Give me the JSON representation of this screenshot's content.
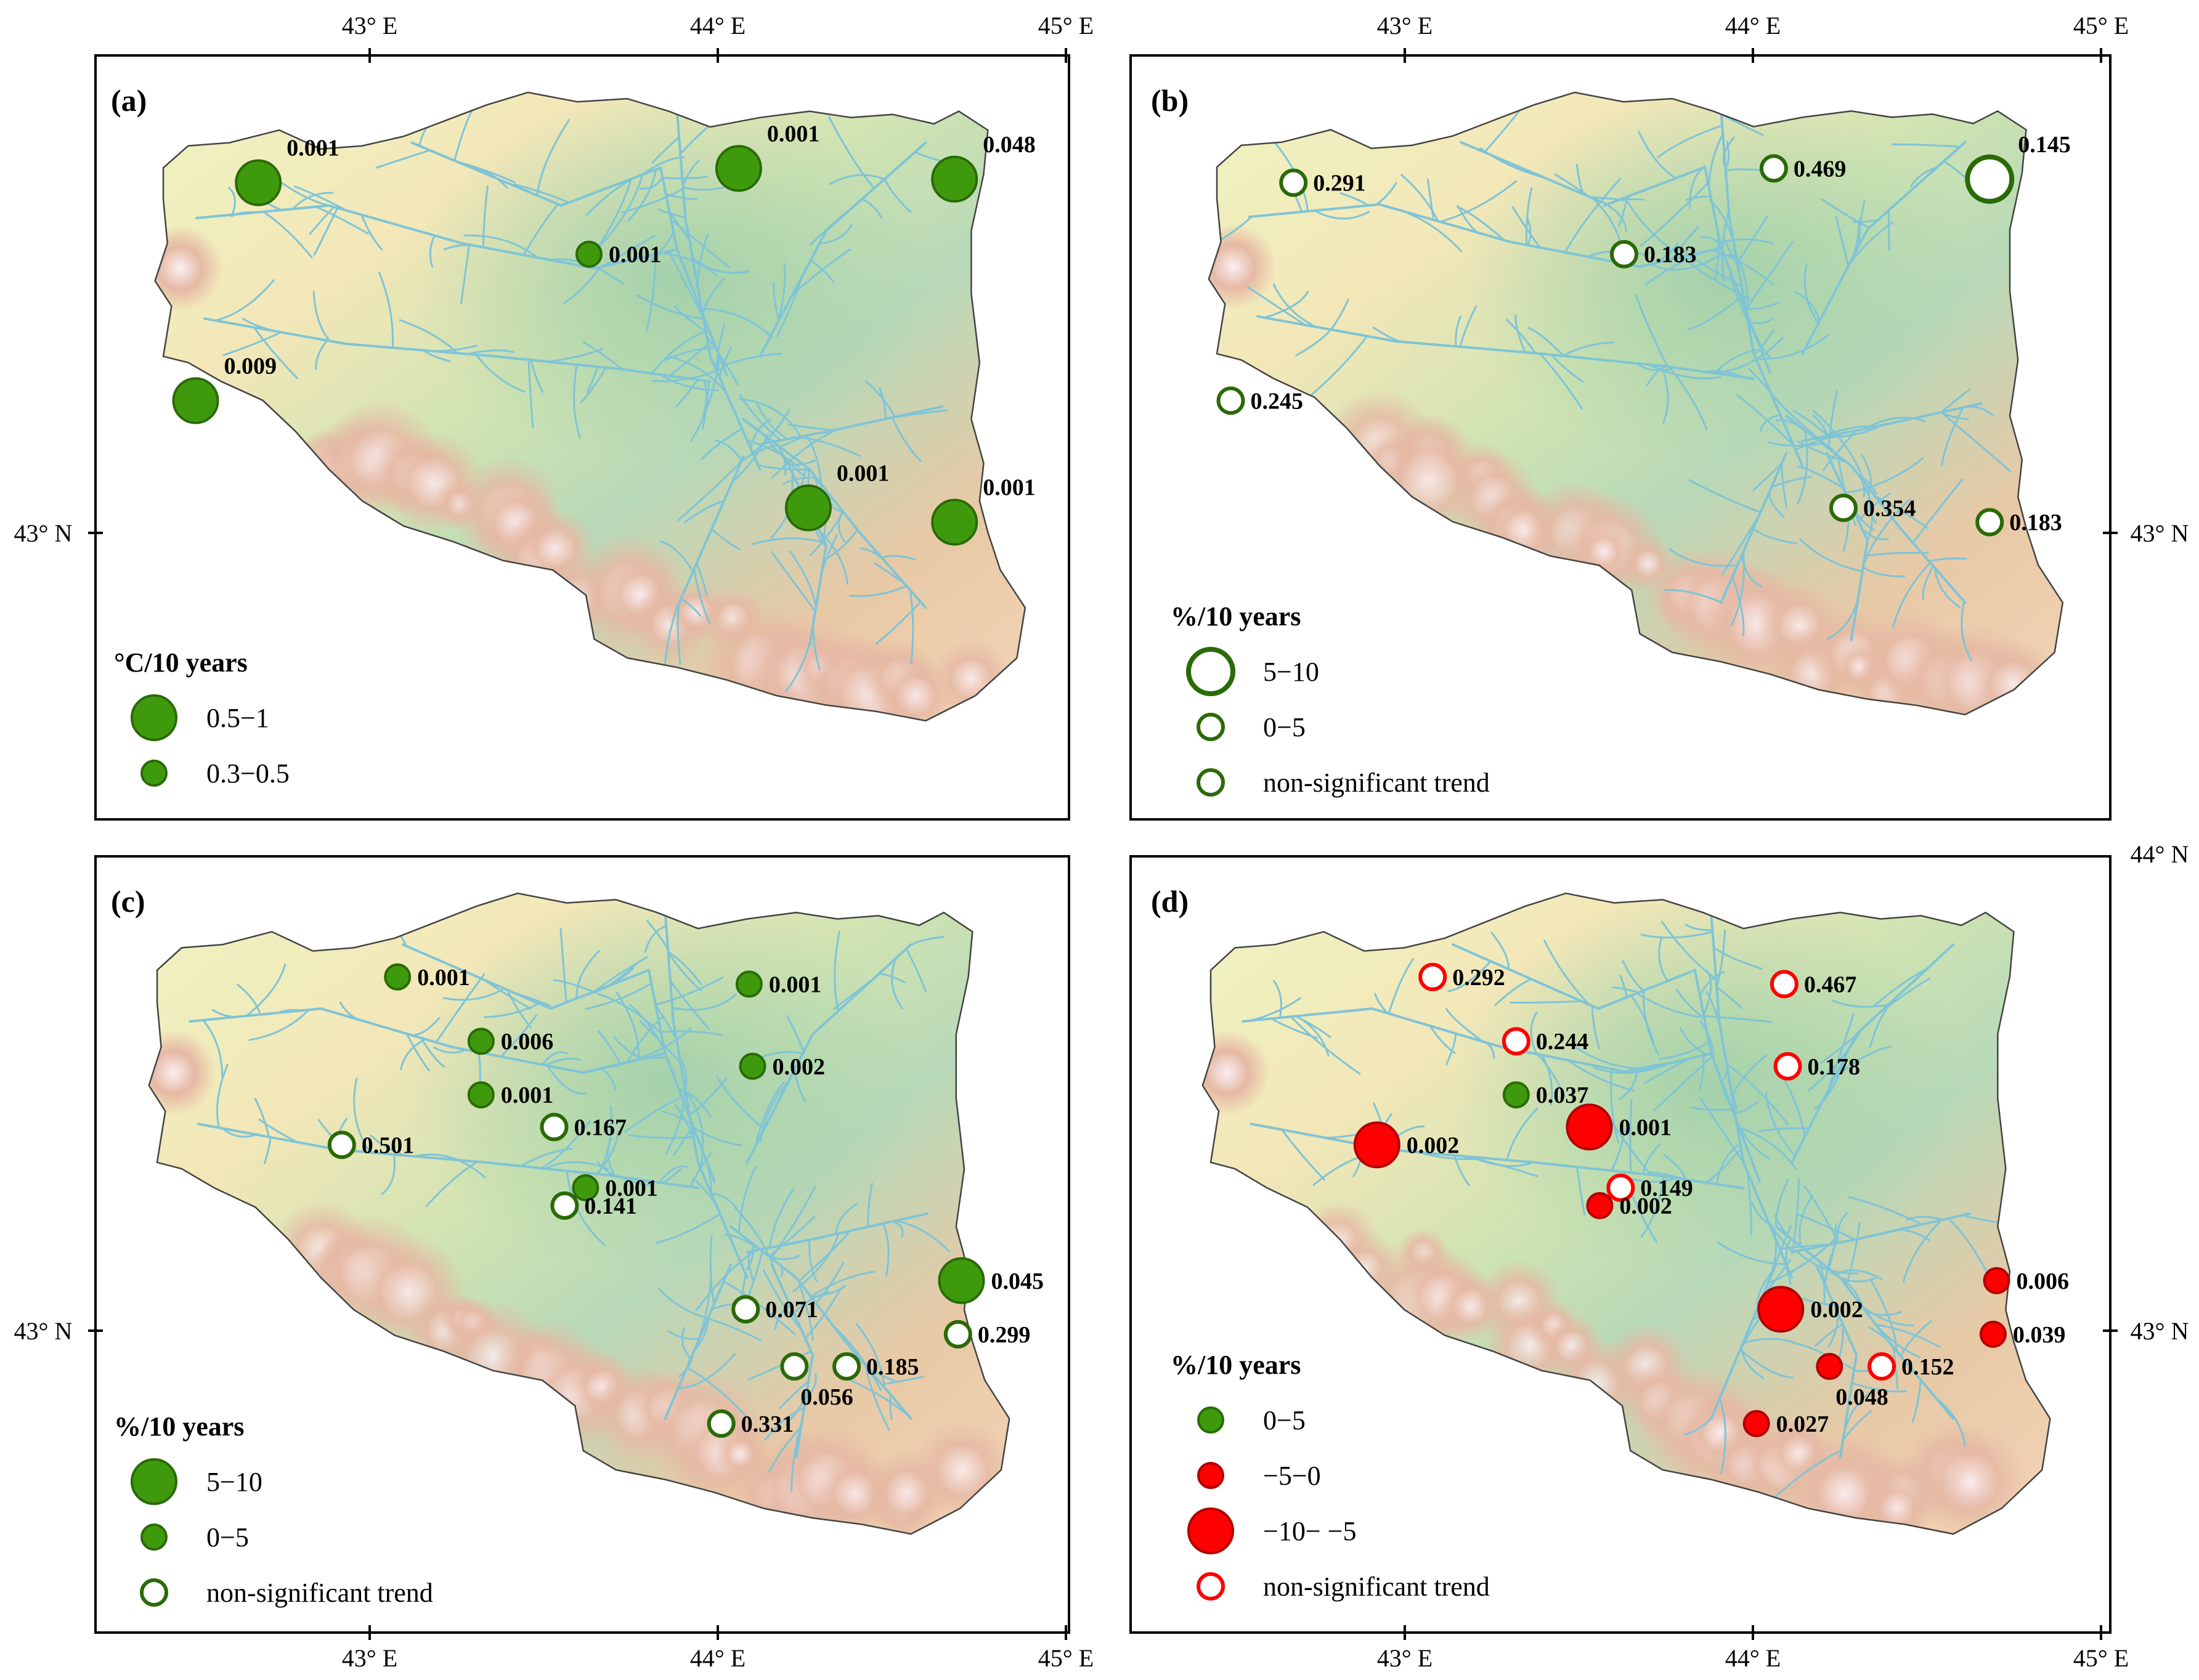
{
  "colors": {
    "green_fill": "#3e9a0c",
    "green_stroke": "#2a6a07",
    "green_d_fill": "#1aa01a",
    "red_fill": "#ff0000",
    "red_stroke": "#b00000",
    "river": "#7fc4d6",
    "basin_outline": "#444444"
  },
  "coords": {
    "lon_labels": [
      "43° E",
      "44° E",
      "45° E"
    ],
    "lat_labels": [
      "43° N",
      "44° N"
    ]
  },
  "panels": [
    {
      "id": "a",
      "label": "(a)",
      "legend": {
        "title": "°C/10 years",
        "items": [
          {
            "label": "0.5−1",
            "style": "filled",
            "size": "large"
          },
          {
            "label": "0.3−0.5",
            "style": "filled",
            "size": "small"
          }
        ]
      },
      "stations": [
        {
          "value": "0.001",
          "lon": 42.68,
          "lat": 43.98,
          "style": "filled",
          "size": "large",
          "color": "green"
        },
        {
          "value": "0.001",
          "lon": 44.06,
          "lat": 44.02,
          "style": "filled",
          "size": "large",
          "color": "green"
        },
        {
          "value": "0.048",
          "lon": 44.68,
          "lat": 43.99,
          "style": "filled",
          "size": "large",
          "color": "green"
        },
        {
          "value": "0.001",
          "lon": 43.63,
          "lat": 43.78,
          "style": "filled",
          "size": "small",
          "color": "green"
        },
        {
          "value": "0.009",
          "lon": 42.5,
          "lat": 43.37,
          "style": "filled",
          "size": "large",
          "color": "green"
        },
        {
          "value": "0.001",
          "lon": 44.26,
          "lat": 43.07,
          "style": "filled",
          "size": "large",
          "color": "green"
        },
        {
          "value": "0.001",
          "lon": 44.68,
          "lat": 43.03,
          "style": "filled",
          "size": "large",
          "color": "green"
        }
      ]
    },
    {
      "id": "b",
      "label": "(b)",
      "legend": {
        "title": "%/10 years",
        "items": [
          {
            "label": "5−10",
            "style": "open",
            "size": "large"
          },
          {
            "label": "0−5",
            "style": "open",
            "size": "small"
          },
          {
            "label": "non-significant trend",
            "style": "open",
            "size": "small"
          }
        ]
      },
      "stations": [
        {
          "value": "0.291",
          "lon": 42.68,
          "lat": 43.98,
          "style": "open",
          "size": "small",
          "color": "green"
        },
        {
          "value": "0.469",
          "lon": 44.06,
          "lat": 44.02,
          "style": "open",
          "size": "small",
          "color": "green"
        },
        {
          "value": "0.145",
          "lon": 44.68,
          "lat": 43.99,
          "style": "open",
          "size": "large",
          "color": "green"
        },
        {
          "value": "0.183",
          "lon": 43.63,
          "lat": 43.78,
          "style": "open",
          "size": "small",
          "color": "green"
        },
        {
          "value": "0.245",
          "lon": 42.5,
          "lat": 43.37,
          "style": "open",
          "size": "small",
          "color": "green"
        },
        {
          "value": "0.354",
          "lon": 44.26,
          "lat": 43.07,
          "style": "open",
          "size": "small",
          "color": "green"
        },
        {
          "value": "0.183",
          "lon": 44.68,
          "lat": 43.03,
          "style": "open",
          "size": "small",
          "color": "green"
        }
      ]
    },
    {
      "id": "c",
      "label": "(c)",
      "legend": {
        "title": "%/10 years",
        "items": [
          {
            "label": "5−10",
            "style": "filled",
            "size": "large"
          },
          {
            "label": "0−5",
            "style": "filled",
            "size": "small"
          },
          {
            "label": "non-significant trend",
            "style": "open",
            "size": "small"
          }
        ]
      },
      "stations": [
        {
          "value": "0.001",
          "lon": 43.08,
          "lat": 43.99,
          "style": "filled",
          "size": "small",
          "color": "green"
        },
        {
          "value": "0.001",
          "lon": 44.09,
          "lat": 43.97,
          "style": "filled",
          "size": "small",
          "color": "green"
        },
        {
          "value": "0.006",
          "lon": 43.32,
          "lat": 43.81,
          "style": "filled",
          "size": "small",
          "color": "green"
        },
        {
          "value": "0.002",
          "lon": 44.1,
          "lat": 43.74,
          "style": "filled",
          "size": "small",
          "color": "green"
        },
        {
          "value": "0.001",
          "lon": 43.32,
          "lat": 43.66,
          "style": "filled",
          "size": "small",
          "color": "green"
        },
        {
          "value": "0.167",
          "lon": 43.53,
          "lat": 43.57,
          "style": "open",
          "size": "small",
          "color": "green"
        },
        {
          "value": "0.501",
          "lon": 42.92,
          "lat": 43.52,
          "style": "open",
          "size": "small",
          "color": "green"
        },
        {
          "value": "0.001",
          "lon": 43.62,
          "lat": 43.4,
          "style": "filled",
          "size": "small",
          "color": "green"
        },
        {
          "value": "0.141",
          "lon": 43.56,
          "lat": 43.35,
          "style": "open",
          "size": "small",
          "color": "green"
        },
        {
          "value": "0.045",
          "lon": 44.7,
          "lat": 43.14,
          "style": "filled",
          "size": "large",
          "color": "green"
        },
        {
          "value": "0.071",
          "lon": 44.08,
          "lat": 43.06,
          "style": "open",
          "size": "small",
          "color": "green"
        },
        {
          "value": "0.299",
          "lon": 44.69,
          "lat": 42.99,
          "style": "open",
          "size": "small",
          "color": "green"
        },
        {
          "value": "0.056",
          "lon": 44.22,
          "lat": 42.9,
          "style": "open",
          "size": "small",
          "color": "green",
          "label_pos": "below"
        },
        {
          "value": "0.185",
          "lon": 44.37,
          "lat": 42.9,
          "style": "open",
          "size": "small",
          "color": "green"
        },
        {
          "value": "0.331",
          "lon": 44.01,
          "lat": 42.74,
          "style": "open",
          "size": "small",
          "color": "green"
        }
      ]
    },
    {
      "id": "d",
      "label": "(d)",
      "legend": {
        "title": "%/10 years",
        "items": [
          {
            "label": "0−5",
            "style": "filled",
            "size": "small",
            "color": "green"
          },
          {
            "label": "−5−0",
            "style": "filled",
            "size": "small",
            "color": "red"
          },
          {
            "label": "−10− −5",
            "style": "filled",
            "size": "large",
            "color": "red"
          },
          {
            "label": "non-significant trend",
            "style": "open",
            "size": "small",
            "color": "red"
          }
        ]
      },
      "stations": [
        {
          "value": "0.292",
          "lon": 43.08,
          "lat": 43.99,
          "style": "open",
          "size": "small",
          "color": "red"
        },
        {
          "value": "0.467",
          "lon": 44.09,
          "lat": 43.97,
          "style": "open",
          "size": "small",
          "color": "red"
        },
        {
          "value": "0.244",
          "lon": 43.32,
          "lat": 43.81,
          "style": "open",
          "size": "small",
          "color": "red"
        },
        {
          "value": "0.178",
          "lon": 44.1,
          "lat": 43.74,
          "style": "open",
          "size": "small",
          "color": "red"
        },
        {
          "value": "0.037",
          "lon": 43.32,
          "lat": 43.66,
          "style": "filled",
          "size": "small",
          "color": "green"
        },
        {
          "value": "0.001",
          "lon": 43.53,
          "lat": 43.57,
          "style": "filled",
          "size": "large",
          "color": "red"
        },
        {
          "value": "0.002",
          "lon": 42.92,
          "lat": 43.52,
          "style": "filled",
          "size": "large",
          "color": "red"
        },
        {
          "value": "0.149",
          "lon": 43.62,
          "lat": 43.4,
          "style": "open",
          "size": "small",
          "color": "red"
        },
        {
          "value": "0.002",
          "lon": 43.56,
          "lat": 43.35,
          "style": "filled",
          "size": "small",
          "color": "red"
        },
        {
          "value": "0.006",
          "lon": 44.7,
          "lat": 43.14,
          "style": "filled",
          "size": "small",
          "color": "red"
        },
        {
          "value": "0.002",
          "lon": 44.08,
          "lat": 43.06,
          "style": "filled",
          "size": "large",
          "color": "red"
        },
        {
          "value": "0.039",
          "lon": 44.69,
          "lat": 42.99,
          "style": "filled",
          "size": "small",
          "color": "red"
        },
        {
          "value": "0.048",
          "lon": 44.22,
          "lat": 42.9,
          "style": "filled",
          "size": "small",
          "color": "red",
          "label_pos": "below"
        },
        {
          "value": "0.152",
          "lon": 44.37,
          "lat": 42.9,
          "style": "open",
          "size": "small",
          "color": "red"
        },
        {
          "value": "0.027",
          "lon": 44.01,
          "lat": 42.74,
          "style": "filled",
          "size": "small",
          "color": "red"
        }
      ]
    }
  ]
}
